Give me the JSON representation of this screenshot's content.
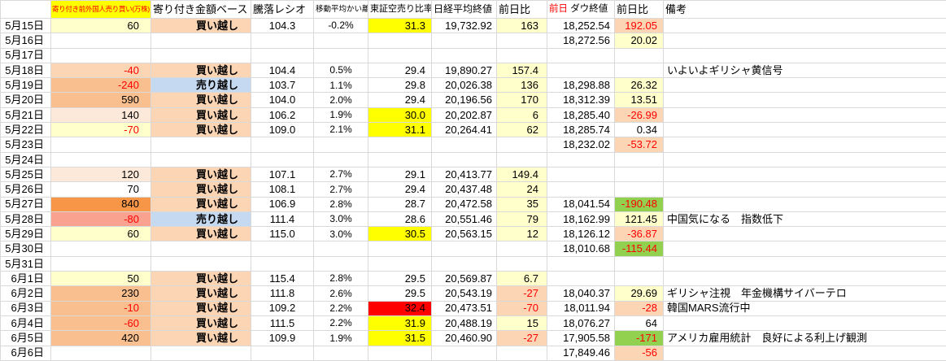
{
  "header": {
    "date": "",
    "foreign": "寄り付き前外国人売り買い(万株)",
    "base": "寄り付き金額ベース",
    "ratio": "騰落レシオ",
    "ma": "移動平均かい離",
    "short_sell": "東証空売り比率",
    "nikkei": "日経平均終値",
    "change": "前日比",
    "dow_prefix": "前日",
    "dow": "ダウ終値",
    "dow_change": "前日比",
    "remarks": "備考"
  },
  "palette": {
    "grid_line": "#d9d9d9",
    "negative_text": "#ff0000",
    "header_accent_red": "#ff0000",
    "paleyellow": "#ffffcc",
    "yellow": "#ffff00",
    "peachlight": "#fde9d9",
    "peach": "#fcd5b4",
    "orange": "#fabf8f",
    "orangedeep": "#f79646",
    "salmon": "#f9a28f",
    "blue": "#c5d9f1",
    "green": "#92d050",
    "red": "#ff0000"
  },
  "rows": [
    {
      "date": "5月15日",
      "foreign": {
        "v": "60",
        "bg": "paleyellow"
      },
      "base": {
        "v": "買い越し",
        "bg": "peach"
      },
      "ratio": "104.3",
      "ma": "-0.2%",
      "short": {
        "v": "31.3",
        "bg": "yellow"
      },
      "nikkei": "19,732.92",
      "change": {
        "v": "163",
        "bg": "paleyellow"
      },
      "dow": "18,252.54",
      "dow_change": {
        "v": "192.05",
        "bg": "peach",
        "red": true
      },
      "remarks": ""
    },
    {
      "date": "5月16日",
      "dow": "18,272.56",
      "dow_change": {
        "v": "20.02",
        "bg": "paleyellow"
      }
    },
    {
      "date": "5月17日"
    },
    {
      "date": "5月18日",
      "foreign": {
        "v": "-40",
        "bg": "peach"
      },
      "base": {
        "v": "買い越し",
        "bg": "peach"
      },
      "ratio": "104.4",
      "ma": "0.5%",
      "short": "29.4",
      "nikkei": "19,890.27",
      "change": {
        "v": "157.4",
        "bg": "paleyellow"
      },
      "remarks": "いよいよギリシャ黄信号"
    },
    {
      "date": "5月19日",
      "foreign": {
        "v": "-240",
        "bg": "orange"
      },
      "base": {
        "v": "売り越し",
        "bg": "blue"
      },
      "ratio": "103.7",
      "ma": "1.1%",
      "short": "29.8",
      "nikkei": "20,026.38",
      "change": {
        "v": "136",
        "bg": "paleyellow"
      },
      "dow": "18,298.88",
      "dow_change": {
        "v": "26.32",
        "bg": "paleyellow"
      }
    },
    {
      "date": "5月20日",
      "foreign": {
        "v": "590",
        "bg": "orange"
      },
      "base": {
        "v": "買い越し",
        "bg": "peach"
      },
      "ratio": "104.0",
      "ma": "2.0%",
      "short": "29.4",
      "nikkei": "20,196.56",
      "change": {
        "v": "170",
        "bg": "paleyellow"
      },
      "dow": "18,312.39",
      "dow_change": {
        "v": "13.51",
        "bg": "paleyellow"
      }
    },
    {
      "date": "5月21日",
      "foreign": {
        "v": "140",
        "bg": "peachlight"
      },
      "base": {
        "v": "買い越し",
        "bg": "peach"
      },
      "ratio": "106.2",
      "ma": "1.9%",
      "short": {
        "v": "30.0",
        "bg": "yellow"
      },
      "nikkei": "20,202.87",
      "change": {
        "v": "6",
        "bg": "paleyellow"
      },
      "dow": "18,285.40",
      "dow_change": {
        "v": "-26.99",
        "bg": "peach"
      }
    },
    {
      "date": "5月22日",
      "foreign": {
        "v": "-70",
        "bg": "paleyellow"
      },
      "base": {
        "v": "買い越し",
        "bg": "peach"
      },
      "ratio": "109.0",
      "ma": "2.1%",
      "short": {
        "v": "31.1",
        "bg": "yellow"
      },
      "nikkei": "20,264.41",
      "change": {
        "v": "62",
        "bg": "paleyellow"
      },
      "dow": "18,285.74",
      "dow_change": {
        "v": "0.34"
      }
    },
    {
      "date": "5月23日",
      "dow": "18,232.02",
      "dow_change": {
        "v": "-53.72",
        "bg": "peach"
      }
    },
    {
      "date": "5月24日"
    },
    {
      "date": "5月25日",
      "foreign": {
        "v": "120",
        "bg": "peachlight"
      },
      "base": {
        "v": "買い越し",
        "bg": "peach"
      },
      "ratio": "107.1",
      "ma": "2.7%",
      "short": "29.1",
      "nikkei": "20,413.77",
      "change": {
        "v": "149.4",
        "bg": "paleyellow"
      }
    },
    {
      "date": "5月26日",
      "foreign": {
        "v": "70"
      },
      "base": {
        "v": "買い越し",
        "bg": "peach"
      },
      "ratio": "108.1",
      "ma": "2.7%",
      "short": "29.4",
      "nikkei": "20,437.48",
      "change": {
        "v": "24",
        "bg": "paleyellow"
      }
    },
    {
      "date": "5月27日",
      "foreign": {
        "v": "840",
        "bg": "orangedeep"
      },
      "base": {
        "v": "買い越し",
        "bg": "peach"
      },
      "ratio": "106.9",
      "ma": "2.8%",
      "short": "28.7",
      "nikkei": "20,472.58",
      "change": {
        "v": "35",
        "bg": "paleyellow"
      },
      "dow": "18,041.54",
      "dow_change": {
        "v": "-190.48",
        "bg": "green"
      }
    },
    {
      "date": "5月28日",
      "foreign": {
        "v": "-80",
        "bg": "salmon"
      },
      "base": {
        "v": "売り越し",
        "bg": "blue"
      },
      "ratio": "111.4",
      "ma": "3.0%",
      "short": "28.6",
      "nikkei": "20,551.46",
      "change": {
        "v": "79",
        "bg": "paleyellow"
      },
      "dow": "18,162.99",
      "dow_change": {
        "v": "121.45",
        "bg": "paleyellow"
      },
      "remarks": "中国気になる　指数低下"
    },
    {
      "date": "5月29日",
      "foreign": {
        "v": "60",
        "bg": "paleyellow"
      },
      "base": {
        "v": "買い越し",
        "bg": "peach"
      },
      "ratio": "115.0",
      "ma": "3.0%",
      "short": {
        "v": "30.5",
        "bg": "yellow"
      },
      "nikkei": "20,563.15",
      "change": {
        "v": "12",
        "bg": "paleyellow"
      },
      "dow": "18,126.12",
      "dow_change": {
        "v": "-36.87",
        "bg": "peach"
      }
    },
    {
      "date": "5月30日",
      "dow": "18,010.68",
      "dow_change": {
        "v": "-115.44",
        "bg": "green"
      }
    },
    {
      "date": "5月31日"
    },
    {
      "date": "6月1日",
      "foreign": {
        "v": "50",
        "bg": "paleyellow"
      },
      "base": {
        "v": "買い越し",
        "bg": "peach"
      },
      "ratio": "115.4",
      "ma": "2.8%",
      "short": "29.5",
      "nikkei": "20,569.87",
      "change": {
        "v": "6.7",
        "bg": "paleyellow"
      }
    },
    {
      "date": "6月2日",
      "foreign": {
        "v": "230",
        "bg": "orange"
      },
      "base": {
        "v": "買い越し",
        "bg": "peach"
      },
      "ratio": "111.8",
      "ma": "2.6%",
      "short": "29.5",
      "nikkei": "20,543.19",
      "change": {
        "v": "-27",
        "bg": "peach"
      },
      "dow": "18,040.37",
      "dow_change": {
        "v": "29.69",
        "bg": "paleyellow"
      },
      "remarks": "ギリシャ注視　年金機構サイバーテロ"
    },
    {
      "date": "6月3日",
      "foreign": {
        "v": "-10",
        "bg": "orange"
      },
      "base": {
        "v": "買い越し",
        "bg": "peach"
      },
      "ratio": "109.2",
      "ma": "2.2%",
      "short": {
        "v": "32.4",
        "bg": "red"
      },
      "nikkei": "20,473.51",
      "change": {
        "v": "-70",
        "bg": "peach"
      },
      "dow": "18,011.94",
      "dow_change": {
        "v": "-28",
        "bg": "peach"
      },
      "remarks": "韓国MARS流行中"
    },
    {
      "date": "6月4日",
      "foreign": {
        "v": "-60",
        "bg": "orange"
      },
      "base": {
        "v": "買い越し",
        "bg": "peach"
      },
      "ratio": "111.5",
      "ma": "2.2%",
      "short": {
        "v": "31.9",
        "bg": "yellow"
      },
      "nikkei": "20,488.19",
      "change": {
        "v": "15",
        "bg": "paleyellow"
      },
      "dow": "18,076.27",
      "dow_change": {
        "v": "64"
      }
    },
    {
      "date": "6月5日",
      "foreign": {
        "v": "420",
        "bg": "orange"
      },
      "base": {
        "v": "買い越し",
        "bg": "peach"
      },
      "ratio": "109.9",
      "ma": "1.9%",
      "short": {
        "v": "31.5",
        "bg": "yellow"
      },
      "nikkei": "20,460.90",
      "change": {
        "v": "-27",
        "bg": "peach"
      },
      "dow": "17,905.58",
      "dow_change": {
        "v": "-171",
        "bg": "green"
      },
      "remarks": "アメリカ雇用統計　良好による利上げ観測"
    },
    {
      "date": "6月6日",
      "dow": "17,849.46",
      "dow_change": {
        "v": "-56",
        "bg": "peach"
      }
    }
  ]
}
